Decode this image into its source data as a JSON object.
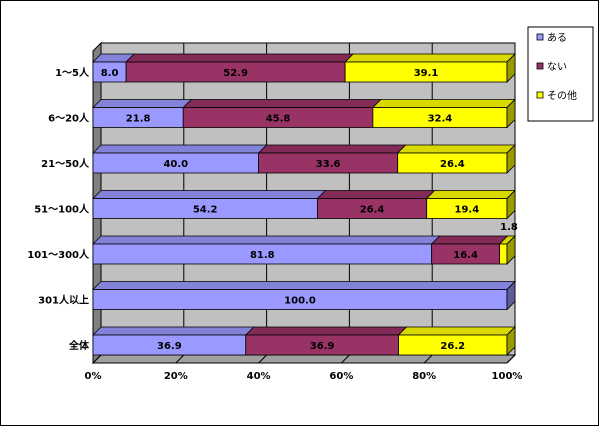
{
  "chart_data": {
    "type": "bar",
    "orientation": "horizontal",
    "stacked": "percent",
    "categories": [
      "1～5人",
      "6～20人",
      "21～50人",
      "51～100人",
      "101～300人",
      "301人以上",
      "全体"
    ],
    "series": [
      {
        "name": "ある",
        "color": "#9999ff",
        "values": [
          8.0,
          21.8,
          40.0,
          54.2,
          81.8,
          100.0,
          36.9
        ]
      },
      {
        "name": "ない",
        "color": "#993366",
        "values": [
          52.9,
          45.8,
          33.6,
          26.4,
          16.4,
          null,
          36.9
        ]
      },
      {
        "name": "その他",
        "color": "#ffff00",
        "values": [
          39.1,
          32.4,
          26.4,
          19.4,
          1.8,
          null,
          26.2
        ]
      }
    ],
    "data_labels": [
      [
        "8.0",
        "52.9",
        "39.1"
      ],
      [
        "21.8",
        "45.8",
        "32.4"
      ],
      [
        "40.0",
        "33.6",
        "26.4"
      ],
      [
        "54.2",
        "26.4",
        "19.4"
      ],
      [
        "81.8",
        "16.4",
        "1.8"
      ],
      [
        "100.0",
        "",
        ""
      ],
      [
        "36.9",
        "36.9",
        "26.2"
      ]
    ],
    "x_ticks": [
      "0%",
      "20%",
      "40%",
      "60%",
      "80%",
      "100%"
    ],
    "xlim": [
      0,
      100
    ],
    "grid": true,
    "legend": "right"
  }
}
